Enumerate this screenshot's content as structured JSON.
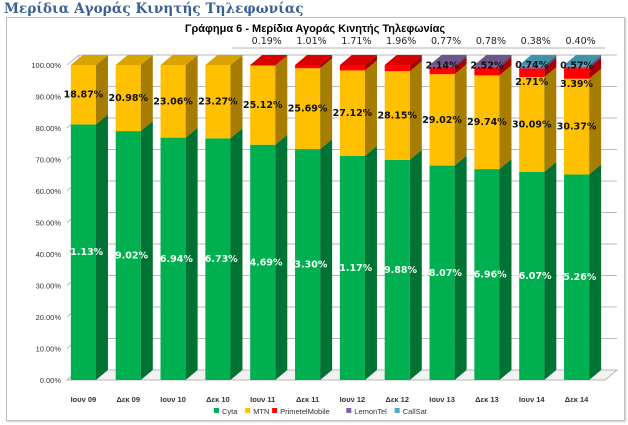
{
  "page": {
    "heading": "Μερίδια Αγοράς Κινητής Τηλεφωνίας"
  },
  "chart_data": {
    "type": "bar",
    "stacked": true,
    "percent_stacked": true,
    "three_d": true,
    "title": "Γράφημα 6 - Μερίδια Αγοράς Κινητής Τηλεφωνίας",
    "xlabel": "",
    "ylabel": "",
    "ylim": [
      0,
      100
    ],
    "yticks": [
      "0.00%",
      "10.00%",
      "20.00%",
      "30.00%",
      "40.00%",
      "50.00%",
      "60.00%",
      "70.00%",
      "80.00%",
      "90.00%",
      "100.00%"
    ],
    "grid": true,
    "legend_position": "bottom-center",
    "categories": [
      "Ιουν 09",
      "Δεκ 09",
      "Ιουν 10",
      "Δεκ 10",
      "Ιουν 11",
      "Δεκ 11",
      "Ιουν 12",
      "Δεκ 12",
      "Ιουν 13",
      "Δεκ 13",
      "Ιουν 14",
      "Δεκ 14"
    ],
    "series": [
      {
        "name": "Cyta",
        "color": "#00b050",
        "values": [
          81.13,
          79.02,
          76.94,
          76.73,
          74.69,
          73.3,
          71.17,
          69.88,
          68.07,
          66.96,
          66.07,
          65.26
        ]
      },
      {
        "name": "MTN",
        "color": "#ffc000",
        "values": [
          18.87,
          20.98,
          23.06,
          23.27,
          25.12,
          25.69,
          27.12,
          28.15,
          29.02,
          29.74,
          30.09,
          30.37
        ]
      },
      {
        "name": "PrimetelMobile",
        "color": "#ff0000",
        "values": [
          0,
          0,
          0,
          0,
          0.19,
          1.01,
          1.71,
          1.96,
          2.14,
          2.52,
          2.71,
          3.39
        ]
      },
      {
        "name": "LemonTel",
        "color": "#8064a2",
        "values": [
          0,
          0,
          0,
          0,
          0,
          0,
          0,
          0,
          0.77,
          0.78,
          0.74,
          0.57
        ]
      },
      {
        "name": "CallSat",
        "color": "#4bacc6",
        "values": [
          0,
          0,
          0,
          0,
          0,
          0,
          0,
          0,
          0,
          0,
          0.38,
          0.4
        ]
      }
    ],
    "data_labels": [
      {
        "category": "Ιουν 09",
        "labels": {
          "Cyta": "81.13%",
          "MTN": "18.87%"
        }
      },
      {
        "category": "Δεκ 09",
        "labels": {
          "Cyta": "79.02%",
          "MTN": "20.98%"
        }
      },
      {
        "category": "Ιουν 10",
        "labels": {
          "Cyta": "76.94%",
          "MTN": "23.06%"
        }
      },
      {
        "category": "Δεκ 10",
        "labels": {
          "Cyta": "76.73%",
          "MTN": "23.27%"
        }
      },
      {
        "category": "Ιουν 11",
        "labels": {
          "Cyta": "74.69%",
          "MTN": "25.12%",
          "PrimetelMobile": "0.19%"
        }
      },
      {
        "category": "Δεκ 11",
        "labels": {
          "Cyta": "73.30%",
          "MTN": "25.69%",
          "PrimetelMobile": "1.01%"
        }
      },
      {
        "category": "Ιουν 12",
        "labels": {
          "Cyta": "71.17%",
          "MTN": "27.12%",
          "PrimetelMobile": "1.71%"
        }
      },
      {
        "category": "Δεκ 12",
        "labels": {
          "Cyta": "69.88%",
          "MTN": "28.15%",
          "PrimetelMobile": "1.96%"
        }
      },
      {
        "category": "Ιουν 13",
        "labels": {
          "Cyta": "68.07%",
          "MTN": "29.02%",
          "PrimetelMobile": "2.14%",
          "LemonTel": "0.77%"
        }
      },
      {
        "category": "Δεκ 13",
        "labels": {
          "Cyta": "66.96%",
          "MTN": "29.74%",
          "PrimetelMobile": "2.52%",
          "LemonTel": "0.78%"
        }
      },
      {
        "category": "Ιουν 14",
        "labels": {
          "Cyta": "66.07%",
          "MTN": "30.09%",
          "PrimetelMobile": "2.71%",
          "LemonTel": "0.74%",
          "CallSat": "0.38%"
        }
      },
      {
        "category": "Δεκ 14",
        "labels": {
          "Cyta": "65.26%",
          "MTN": "30.37%",
          "PrimetelMobile": "3.39%",
          "LemonTel": "0.57%",
          "CallSat": "0.40%"
        }
      }
    ]
  }
}
